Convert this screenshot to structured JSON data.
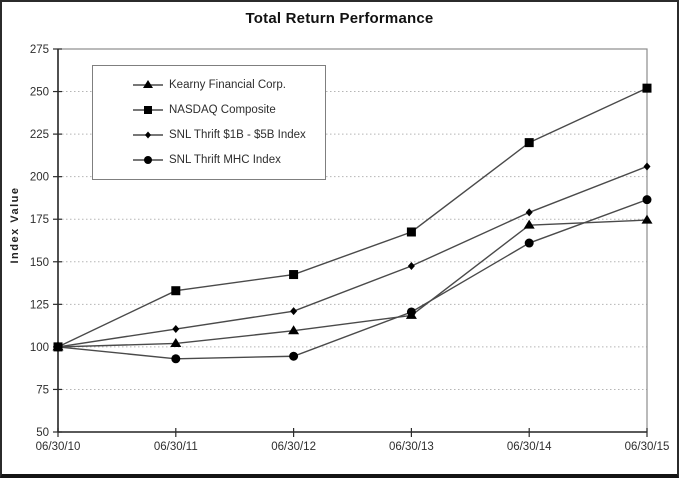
{
  "window": {
    "title": "Total Return Performance"
  },
  "chart_data": {
    "type": "line",
    "title": "Total Return Performance",
    "xlabel": "",
    "ylabel": "Index Value",
    "categories": [
      "06/30/10",
      "06/30/11",
      "06/30/12",
      "06/30/13",
      "06/30/14",
      "06/30/15"
    ],
    "series": [
      {
        "name": "Kearny Financial Corp.",
        "marker": "triangle",
        "values": [
          100,
          102,
          109.5,
          118.5,
          171.5,
          174.5
        ]
      },
      {
        "name": "NASDAQ Composite",
        "marker": "square",
        "values": [
          100,
          133,
          142.5,
          167.5,
          220,
          252
        ]
      },
      {
        "name": "SNL Thrift $1B - $5B Index",
        "marker": "diamond",
        "values": [
          100,
          110.5,
          121,
          147.5,
          179,
          206
        ]
      },
      {
        "name": "SNL Thrift MHC Index",
        "marker": "circle",
        "values": [
          100,
          93,
          94.5,
          120.5,
          161,
          186.5
        ]
      }
    ],
    "ylim": [
      50,
      275
    ],
    "y_ticks": [
      50,
      75,
      100,
      125,
      150,
      175,
      200,
      225,
      250,
      275
    ],
    "grid": "horizontal-dotted",
    "legend_position": "top-left",
    "colors": {
      "line": "#4a4a4a",
      "marker": "#000000",
      "grid": "#b5b5b5",
      "box": "#8c8c8c",
      "axis": "#2b2b2b",
      "tick_text": "#2e2e2e",
      "title_text": "#111111"
    }
  }
}
